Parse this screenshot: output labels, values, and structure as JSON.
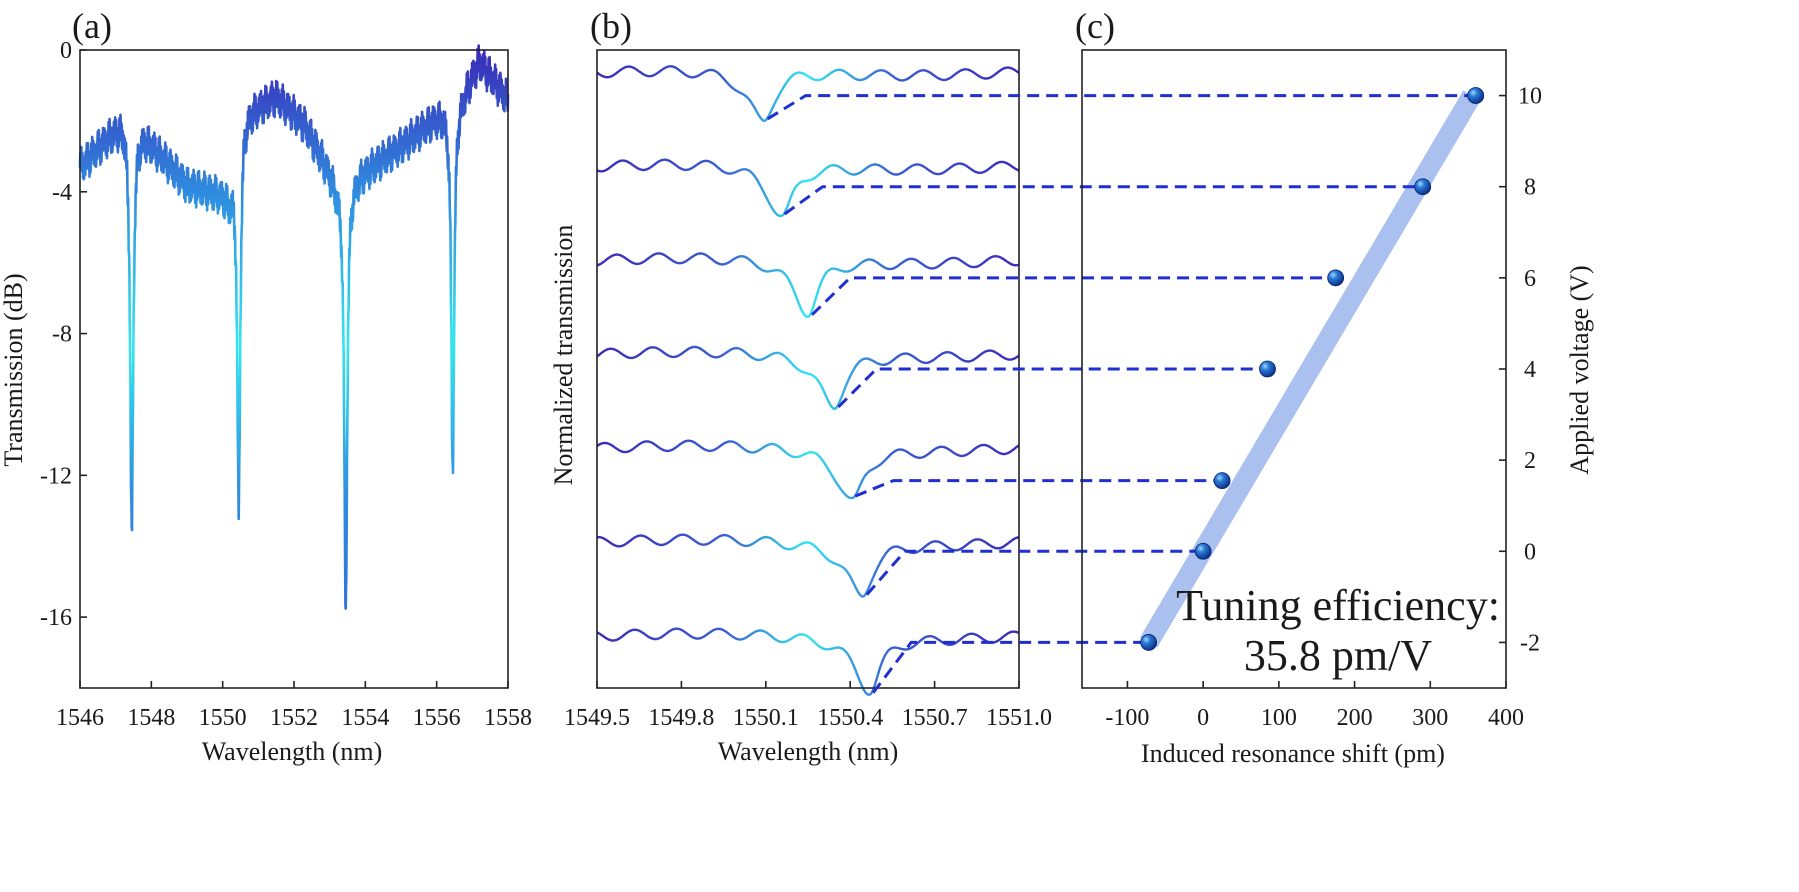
{
  "colors": {
    "deep": "#3a2bb8",
    "mid": "#2f8ee0",
    "light": "#35e5f0",
    "dashed": "#1f2fd0",
    "fit": "#aac0ee",
    "marker": "#1550a6"
  },
  "chart_data": [
    {
      "panel": "a",
      "panel_label": "(a)",
      "type": "line",
      "xlabel": "Wavelength (nm)",
      "ylabel": "Transmission (dB)",
      "xlim": [
        1546,
        1558
      ],
      "ylim": [
        -18,
        0
      ],
      "xticks": [
        "1546",
        "1548",
        "1550",
        "1552",
        "1554",
        "1556",
        "1558"
      ],
      "yticks": [
        "0",
        "-4",
        "-8",
        "-12",
        "-16"
      ],
      "ytick_values": [
        0,
        -4,
        -8,
        -12,
        -16
      ],
      "envelope_x": [
        1546,
        1547.2,
        1547.8,
        1549.0,
        1550.2,
        1550.6,
        1551.5,
        1552.3,
        1553.2,
        1553.7,
        1555.0,
        1556.2,
        1556.7,
        1557.2,
        1558
      ],
      "envelope_y": [
        -3.3,
        -2.0,
        -2.4,
        -3.8,
        -4.1,
        -1.8,
        -1.3,
        -2.1,
        -3.8,
        -3.6,
        -2.7,
        -1.7,
        -1.3,
        -0.3,
        -1.4
      ],
      "ripple_db": 0.35,
      "dips": [
        {
          "x": 1547.45,
          "depth": -13.7
        },
        {
          "x": 1550.45,
          "depth": -13.0
        },
        {
          "x": 1553.45,
          "depth": -15.8
        },
        {
          "x": 1556.45,
          "depth": -11.8
        }
      ]
    },
    {
      "panel": "b",
      "panel_label": "(b)",
      "type": "line",
      "xlabel": "Wavelength (nm)",
      "ylabel": "Normalized transmission",
      "xlim": [
        1549.5,
        1551.0
      ],
      "xticks": [
        "1549.5",
        "1549.8",
        "1550.1",
        "1550.4",
        "1550.7",
        "1551.0"
      ],
      "xtick_values": [
        1549.5,
        1549.8,
        1550.1,
        1550.4,
        1550.7,
        1551.0
      ],
      "series": [
        {
          "voltage": 10,
          "dip_center": 1550.09
        },
        {
          "voltage": 8,
          "dip_center": 1550.16
        },
        {
          "voltage": 6,
          "dip_center": 1550.25
        },
        {
          "voltage": 4,
          "dip_center": 1550.34
        },
        {
          "voltage": 2,
          "dip_center": 1550.41
        },
        {
          "voltage": 0,
          "dip_center": 1550.44
        },
        {
          "voltage": -2,
          "dip_center": 1550.47
        }
      ]
    },
    {
      "panel": "c",
      "panel_label": "(c)",
      "type": "scatter",
      "xlabel": "Induced resonance shift (pm)",
      "ylabel": "Applied voltage (V)",
      "xlim": [
        -160,
        400
      ],
      "ylim": [
        -3,
        11
      ],
      "xticks": [
        "-100",
        "0",
        "100",
        "200",
        "300",
        "400"
      ],
      "xtick_values": [
        -100,
        0,
        100,
        200,
        300,
        400
      ],
      "yticks": [
        "10",
        "8",
        "6",
        "4",
        "2",
        "0",
        "-2"
      ],
      "ytick_values": [
        10,
        8,
        6,
        4,
        2,
        0,
        -2
      ],
      "points": [
        {
          "x": -72,
          "y": -2
        },
        {
          "x": 0,
          "y": 0
        },
        {
          "x": 25,
          "y": 1.55
        },
        {
          "x": 85,
          "y": 4
        },
        {
          "x": 175,
          "y": 6
        },
        {
          "x": 290,
          "y": 8
        },
        {
          "x": 360,
          "y": 10
        }
      ],
      "fit_line": {
        "x": [
          -72,
          355
        ],
        "y": [
          -2,
          10
        ]
      },
      "annotation_line1": "Tuning efficiency:",
      "annotation_line2": "35.8 pm/V"
    }
  ]
}
